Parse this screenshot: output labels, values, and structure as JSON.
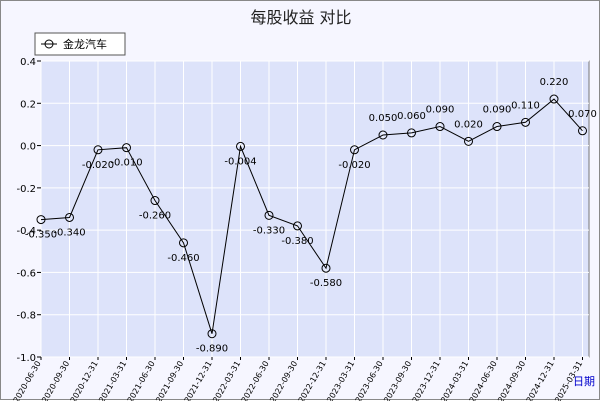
{
  "chart_data": {
    "type": "line",
    "title": "每股收益  对比",
    "xlabel": "日期",
    "ylabel": "",
    "ylim": [
      -1.0,
      0.4
    ],
    "yticks": [
      "0.4",
      "0.2",
      "0.0",
      "-0.2",
      "-0.4",
      "-0.6",
      "-0.8",
      "-1.0"
    ],
    "grid": true,
    "legend_position": "top-left",
    "x": [
      "2020-06-30",
      "2020-09-30",
      "2020-12-31",
      "2021-03-31",
      "2021-06-30",
      "2021-09-30",
      "2021-12-31",
      "2022-03-31",
      "2022-06-30",
      "2022-09-30",
      "2022-12-31",
      "2023-03-31",
      "2023-06-30",
      "2023-09-30",
      "2023-12-31",
      "2024-03-31",
      "2024-06-30",
      "2024-09-30",
      "2024-12-31",
      "2025-03-31"
    ],
    "series": [
      {
        "name": "金龙汽车",
        "values": [
          -0.35,
          -0.34,
          -0.02,
          -0.01,
          -0.26,
          -0.46,
          -0.89,
          -0.004,
          -0.33,
          -0.38,
          -0.58,
          -0.02,
          0.05,
          0.06,
          0.09,
          0.02,
          0.09,
          0.11,
          0.22,
          0.07
        ],
        "labels": [
          "-0.350",
          "-0.340",
          "-0.020",
          "-0.010",
          "-0.260",
          "-0.460",
          "-0.890",
          "-0.004",
          "-0.330",
          "-0.380",
          "-0.580",
          "-0.020",
          "0.050",
          "0.060",
          "0.090",
          "0.020",
          "0.090",
          "0.110",
          "0.220",
          "0.070"
        ]
      }
    ],
    "colors": {
      "plot_bg": "#dde3fa",
      "frame_bg": "#f6f6ff",
      "grid": "#ffffff",
      "line": "#000000",
      "xlabel": "#0000cc"
    }
  }
}
